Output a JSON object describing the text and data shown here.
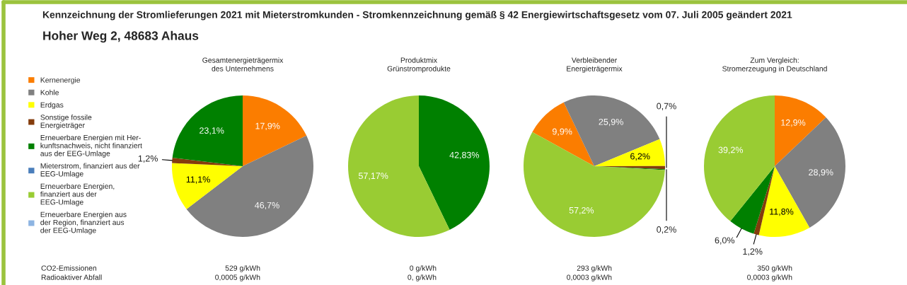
{
  "chart_data": [
    {
      "type": "pie",
      "title": "Kennzeichnung der Stromlieferungen 2021 mit Mieterstromkunden - Stromkennzeichnung gemäß § 42 Energiewirtschaftsgesetz vom 07. Juli 2005 geändert 2021",
      "subtitle": "Hoher Weg 2, 48683 Ahaus",
      "xlabel": "Gesamtenergieträgermix\ndes Unternehmens",
      "legend": "left",
      "categories": [
        "Kernenergie",
        "Kohle",
        "Erdgas",
        "Sonstige fossile\nEnergieträger",
        "Erneuerbare Energien mit Her-\nkunftsnachweis, nicht finanziert\naus der EEG-Umlage",
        "Mieterstrom, finanziert aus der\nEEG-Umlage",
        "Erneuerbare Energien,\nfinanziert aus der\nEEG-Umlage",
        "Erneuerbare Energien aus\nder Region, finanziert aus\nder EEG-Umlage"
      ],
      "colors": [
        "#fb7d00",
        "#808080",
        "#ffff00",
        "#843c0c",
        "#008000",
        "#4a7ebb",
        "#99cc33",
        "#8db4e2"
      ],
      "values": [
        17.9,
        46.7,
        11.1,
        1.2,
        23.1,
        0,
        0,
        0
      ],
      "value_labels": [
        "17,9%",
        "46,7%",
        "11,1%",
        "1,2%",
        "23,1%",
        null,
        null,
        null
      ],
      "annotations": [
        "529 g/kWh",
        "0,0005 g/kWh",
        "CO2-Emissionen",
        "Radioaktiver Abfall"
      ]
    },
    {
      "type": "pie",
      "xlabel": "Produktmix\nGrünstromprodukte",
      "categories": [
        null,
        null
      ],
      "colors": [
        "#008000",
        "#99cc33"
      ],
      "values": [
        42.83,
        57.17
      ],
      "value_labels": [
        "42,83%",
        "57,17%"
      ],
      "annotations": [
        "0 g/kWh",
        "0, g/kWh"
      ]
    },
    {
      "type": "pie",
      "xlabel": "Verbleibender\nEnergieträgermix",
      "categories": [
        null,
        null,
        null,
        null,
        null,
        null
      ],
      "colors": [
        "#fb7d00",
        "#808080",
        "#ffff00",
        "#843c0c",
        "#008000",
        "#99cc33"
      ],
      "values": [
        9.9,
        25.9,
        6.2,
        0.7,
        0.2,
        57.2
      ],
      "value_labels": [
        "9,9%",
        "25,9%",
        "6,2%",
        "0,7%",
        "0,2%",
        "57,2%"
      ],
      "annotations": [
        "293 g/kWh",
        "0,0003 g/kWh"
      ]
    },
    {
      "type": "pie",
      "xlabel": "Zum Vergleich:\nStromerzeugung in Deutschland",
      "categories": [
        null,
        null,
        null,
        null,
        null,
        null
      ],
      "colors": [
        "#fb7d00",
        "#808080",
        "#ffff00",
        "#843c0c",
        "#008000",
        "#99cc33"
      ],
      "values": [
        12.9,
        28.9,
        11.8,
        1.2,
        6.0,
        39.2
      ],
      "value_labels": [
        "12,9%",
        "28,9%",
        "11,8%",
        "1,2%",
        "6,0%",
        "39,2%"
      ],
      "annotations": [
        "350 g/kWh",
        "0,0003 g/kWh"
      ]
    }
  ]
}
